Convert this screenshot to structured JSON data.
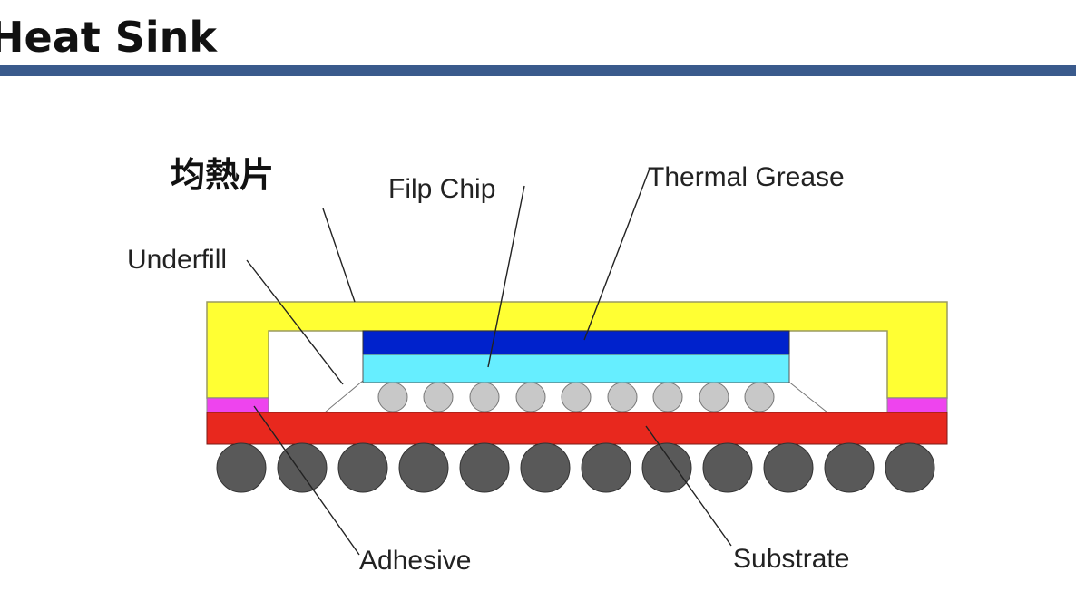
{
  "slide": {
    "title": "Heat Sink",
    "accent_color": "#3a5a8c"
  },
  "diagram": {
    "labels": {
      "heat_spreader": "均熱片",
      "flip_chip": "Filp Chip",
      "thermal_grease": "Thermal Grease",
      "underfill": "Underfill",
      "adhesive": "Adhesive",
      "substrate": "Substrate"
    },
    "colors": {
      "heat_spreader": "#ffff33",
      "thermal_grease": "#0022cc",
      "flip_chip": "#66eeff",
      "solder_bump": "#c8c8c8",
      "substrate": "#e8281e",
      "adhesive": "#ee44ee",
      "solder_ball": "#595959"
    },
    "small_bump_count": 9,
    "large_ball_count": 12
  }
}
